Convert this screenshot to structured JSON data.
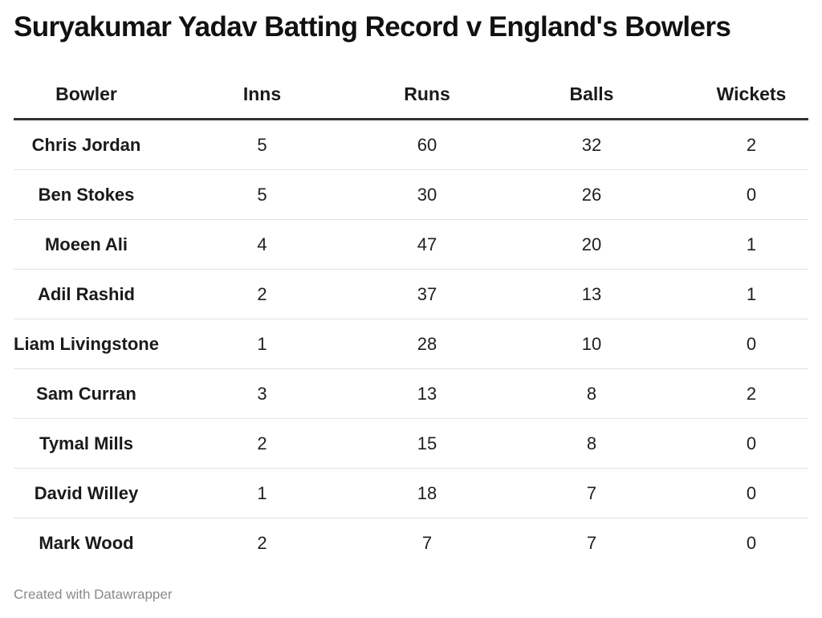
{
  "title": "Suryakumar Yadav Batting Record v England's Bowlers",
  "footer": "Created with Datawrapper",
  "chart_data": {
    "type": "table",
    "title": "Suryakumar Yadav Batting Record v England's Bowlers",
    "columns": [
      "Bowler",
      "Inns",
      "Runs",
      "Balls",
      "Wickets"
    ],
    "rows": [
      [
        "Chris Jordan",
        "5",
        "60",
        "32",
        "2"
      ],
      [
        "Ben Stokes",
        "5",
        "30",
        "26",
        "0"
      ],
      [
        "Moeen Ali",
        "4",
        "47",
        "20",
        "1"
      ],
      [
        "Adil Rashid",
        "2",
        "37",
        "13",
        "1"
      ],
      [
        "Liam Livingstone",
        "1",
        "28",
        "10",
        "0"
      ],
      [
        "Sam Curran",
        "3",
        "13",
        "8",
        "2"
      ],
      [
        "Tymal Mills",
        "2",
        "15",
        "8",
        "0"
      ],
      [
        "David Willey",
        "1",
        "18",
        "7",
        "0"
      ],
      [
        "Mark Wood",
        "2",
        "7",
        "7",
        "0"
      ]
    ]
  }
}
